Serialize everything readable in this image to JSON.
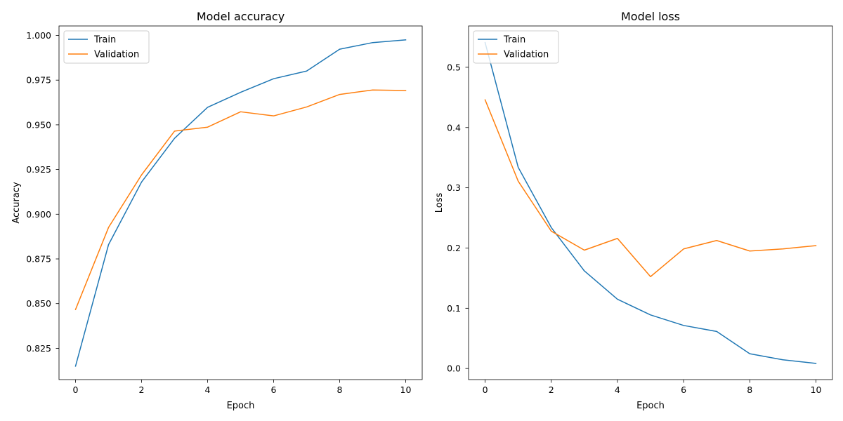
{
  "chart_data": [
    {
      "type": "line",
      "title": "Model accuracy",
      "xlabel": "Epoch",
      "ylabel": "Accuracy",
      "x": [
        0,
        1,
        2,
        3,
        4,
        5,
        6,
        7,
        8,
        9,
        10
      ],
      "xlim": [
        -0.5,
        10.5
      ],
      "ylim": [
        0.8075,
        1.0053
      ],
      "xticks": [
        0,
        2,
        4,
        6,
        8,
        10
      ],
      "xtick_labels": [
        "0",
        "2",
        "4",
        "6",
        "8",
        "10"
      ],
      "yticks": [
        0.825,
        0.85,
        0.875,
        0.9,
        0.925,
        0.95,
        0.975,
        1.0
      ],
      "ytick_labels": [
        "0.825",
        "0.850",
        "0.875",
        "0.900",
        "0.925",
        "0.950",
        "0.975",
        "1.000"
      ],
      "grid": false,
      "legend_position": "upper-left",
      "series": [
        {
          "name": "Train",
          "color": "#1f77b4",
          "values": [
            0.815,
            0.883,
            0.918,
            0.9425,
            0.9598,
            0.9682,
            0.9758,
            0.9801,
            0.9923,
            0.996,
            0.9975
          ]
        },
        {
          "name": "Validation",
          "color": "#ff7f0e",
          "values": [
            0.8467,
            0.8926,
            0.922,
            0.9465,
            0.9487,
            0.9573,
            0.955,
            0.96,
            0.967,
            0.9695,
            0.9692
          ]
        }
      ]
    },
    {
      "type": "line",
      "title": "Model loss",
      "xlabel": "Epoch",
      "ylabel": "Loss",
      "x": [
        0,
        1,
        2,
        3,
        4,
        5,
        6,
        7,
        8,
        9,
        10
      ],
      "xlim": [
        -0.5,
        10.5
      ],
      "ylim": [
        -0.0184,
        0.5686
      ],
      "xticks": [
        0,
        2,
        4,
        6,
        8,
        10
      ],
      "xtick_labels": [
        "0",
        "2",
        "4",
        "6",
        "8",
        "10"
      ],
      "yticks": [
        0.0,
        0.1,
        0.2,
        0.3,
        0.4,
        0.5
      ],
      "ytick_labels": [
        "0.0",
        "0.1",
        "0.2",
        "0.3",
        "0.4",
        "0.5"
      ],
      "grid": false,
      "legend_position": "upper-left",
      "series": [
        {
          "name": "Train",
          "color": "#1f77b4",
          "values": [
            0.541,
            0.334,
            0.234,
            0.162,
            0.115,
            0.089,
            0.0715,
            0.0615,
            0.0245,
            0.0145,
            0.0085
          ]
        },
        {
          "name": "Validation",
          "color": "#ff7f0e",
          "values": [
            0.446,
            0.311,
            0.228,
            0.1965,
            0.216,
            0.1525,
            0.1985,
            0.2125,
            0.195,
            0.1985,
            0.204
          ]
        }
      ]
    }
  ]
}
